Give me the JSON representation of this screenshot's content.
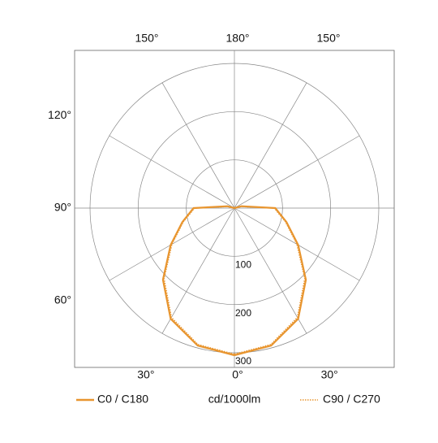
{
  "chart_data": {
    "type": "polar",
    "unit_label": "cd/1000lm",
    "angles": [
      0,
      15,
      30,
      45,
      60,
      75,
      90,
      105,
      120,
      135,
      150,
      165,
      180
    ],
    "series": [
      {
        "name": "C0 / C180",
        "color": "#e8952f",
        "style": "solid",
        "values": [
          305,
          295,
          265,
          210,
          153,
          112,
          85,
          15,
          0,
          0,
          0,
          0,
          0
        ]
      },
      {
        "name": "C90 / C270",
        "color": "#e8952f",
        "style": "dotted",
        "values": [
          303,
          293,
          262,
          207,
          150,
          110,
          83,
          13,
          0,
          0,
          0,
          0,
          0
        ]
      }
    ],
    "rlim": [
      0,
      300
    ],
    "rticks": [
      100,
      200,
      300
    ],
    "angle_ticks": [
      {
        "value": 0,
        "label": "0°"
      },
      {
        "value": 30,
        "label": "30°"
      },
      {
        "value": 60,
        "label": "60°"
      },
      {
        "value": 90,
        "label": "90°"
      },
      {
        "value": 120,
        "label": "120°"
      },
      {
        "value": 150,
        "label": "150°"
      },
      {
        "value": 180,
        "label": "180°"
      }
    ],
    "grid": true
  }
}
